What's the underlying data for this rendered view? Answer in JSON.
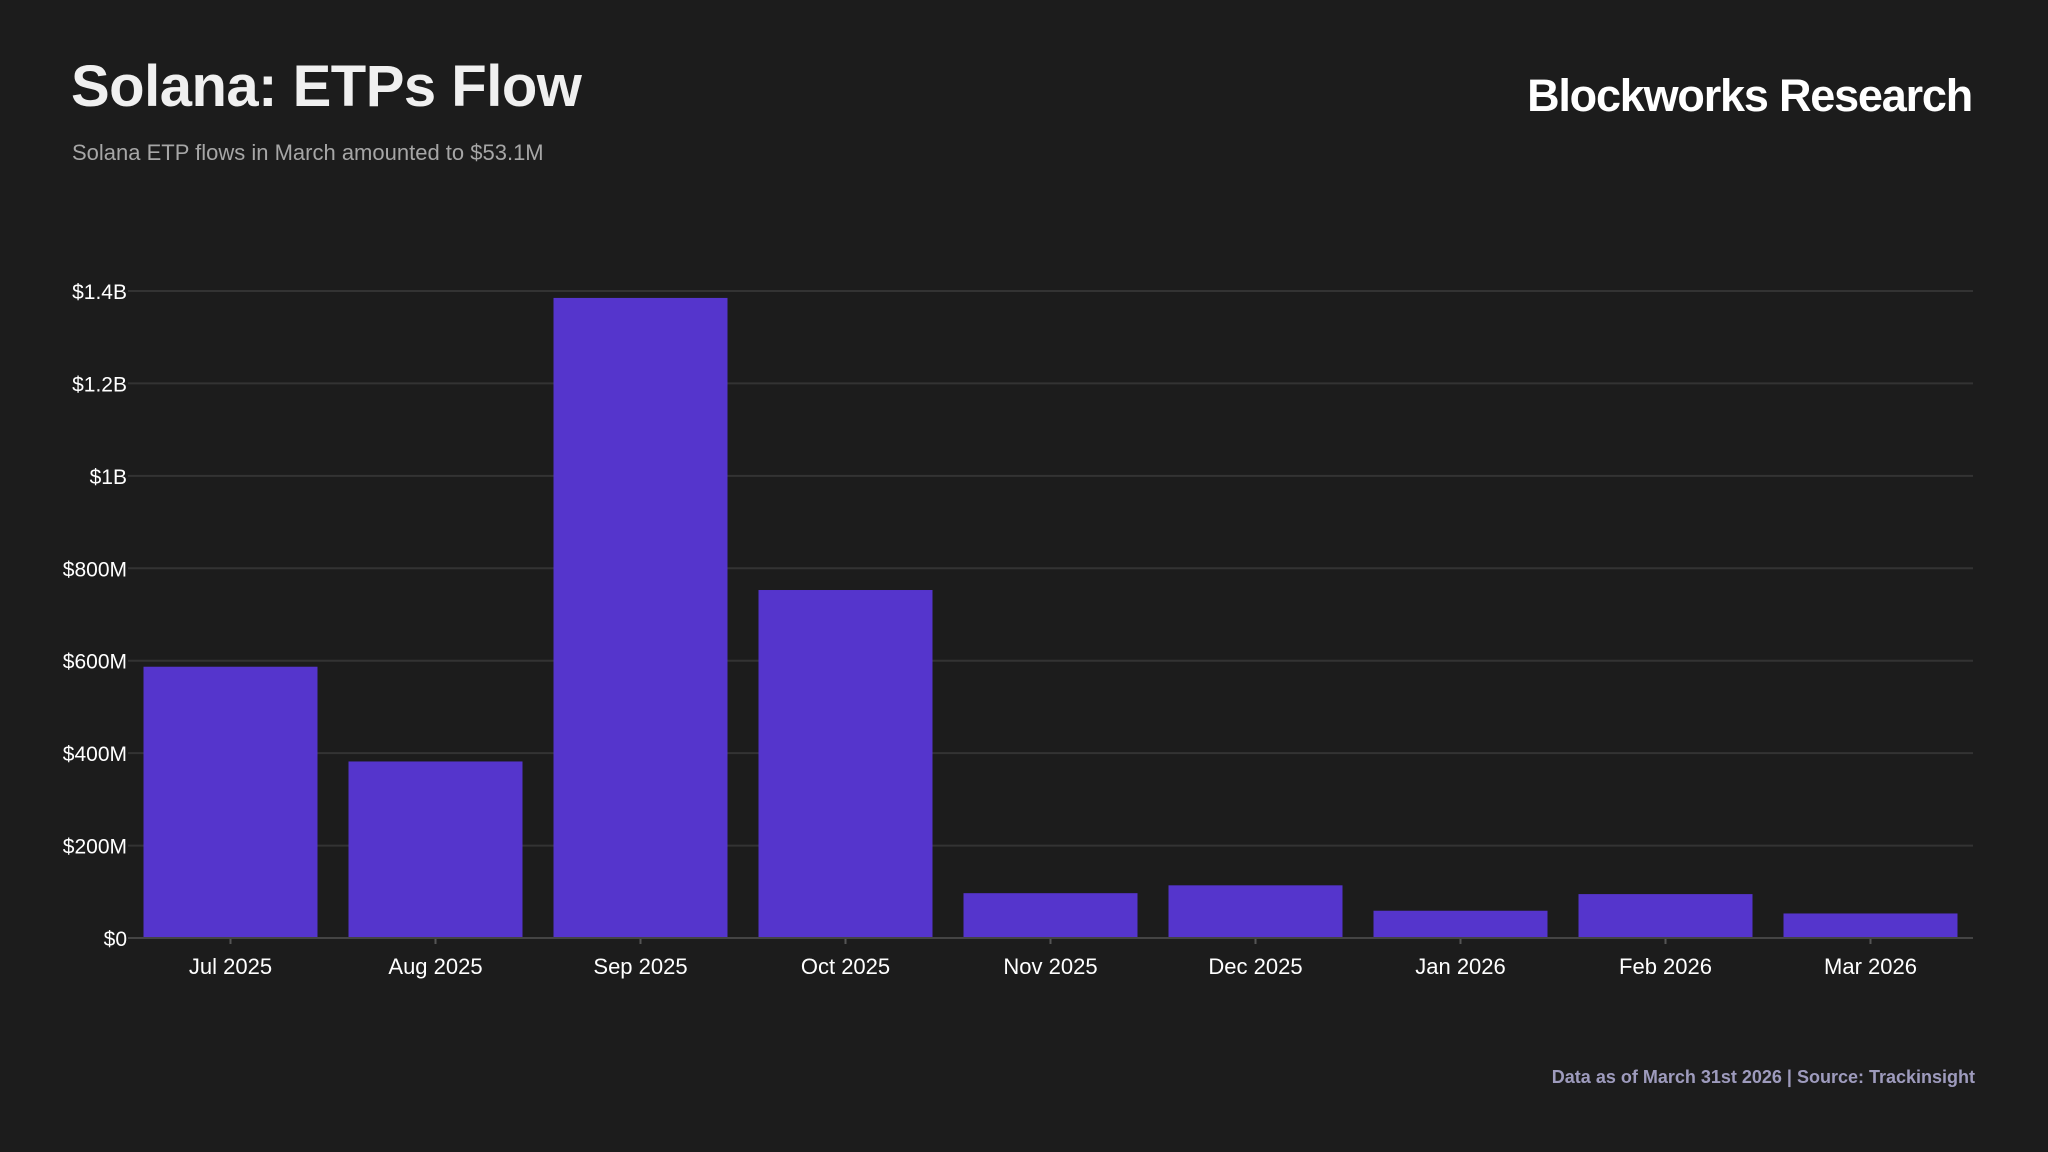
{
  "header": {
    "title": "Solana: ETPs Flow",
    "subtitle": "Solana ETP flows in March amounted to $53.1M",
    "brand": "Blockworks Research"
  },
  "footer": {
    "source": "Data as of March 31st 2026 | Source: Trackinsight"
  },
  "colors": {
    "background": "#1c1c1c",
    "bar": "#5535cc",
    "grid": "#333333",
    "text": "#ffffff",
    "subtitle": "#a6a6a6",
    "footer": "#9e9bbd"
  },
  "chart_data": {
    "type": "bar",
    "title": "Solana: ETPs Flow",
    "subtitle": "Solana ETP flows in March amounted to $53.1M",
    "xlabel": "",
    "ylabel": "",
    "categories": [
      "Jul 2025",
      "Aug 2025",
      "Sep 2025",
      "Oct 2025",
      "Nov 2025",
      "Dec 2025",
      "Jan 2026",
      "Feb 2026",
      "Mar 2026"
    ],
    "values": [
      587000000,
      382000000,
      1385000000,
      753000000,
      97000000,
      114000000,
      59000000,
      95000000,
      53100000
    ],
    "ylim": [
      0,
      1400000000
    ],
    "yticks": [
      0,
      200000000,
      400000000,
      600000000,
      800000000,
      1000000000,
      1200000000,
      1400000000
    ],
    "ytick_labels": [
      "$0",
      "$200M",
      "$400M",
      "$600M",
      "$800M",
      "$1B",
      "$1.2B",
      "$1.4B"
    ],
    "grid": true,
    "legend": "none"
  }
}
